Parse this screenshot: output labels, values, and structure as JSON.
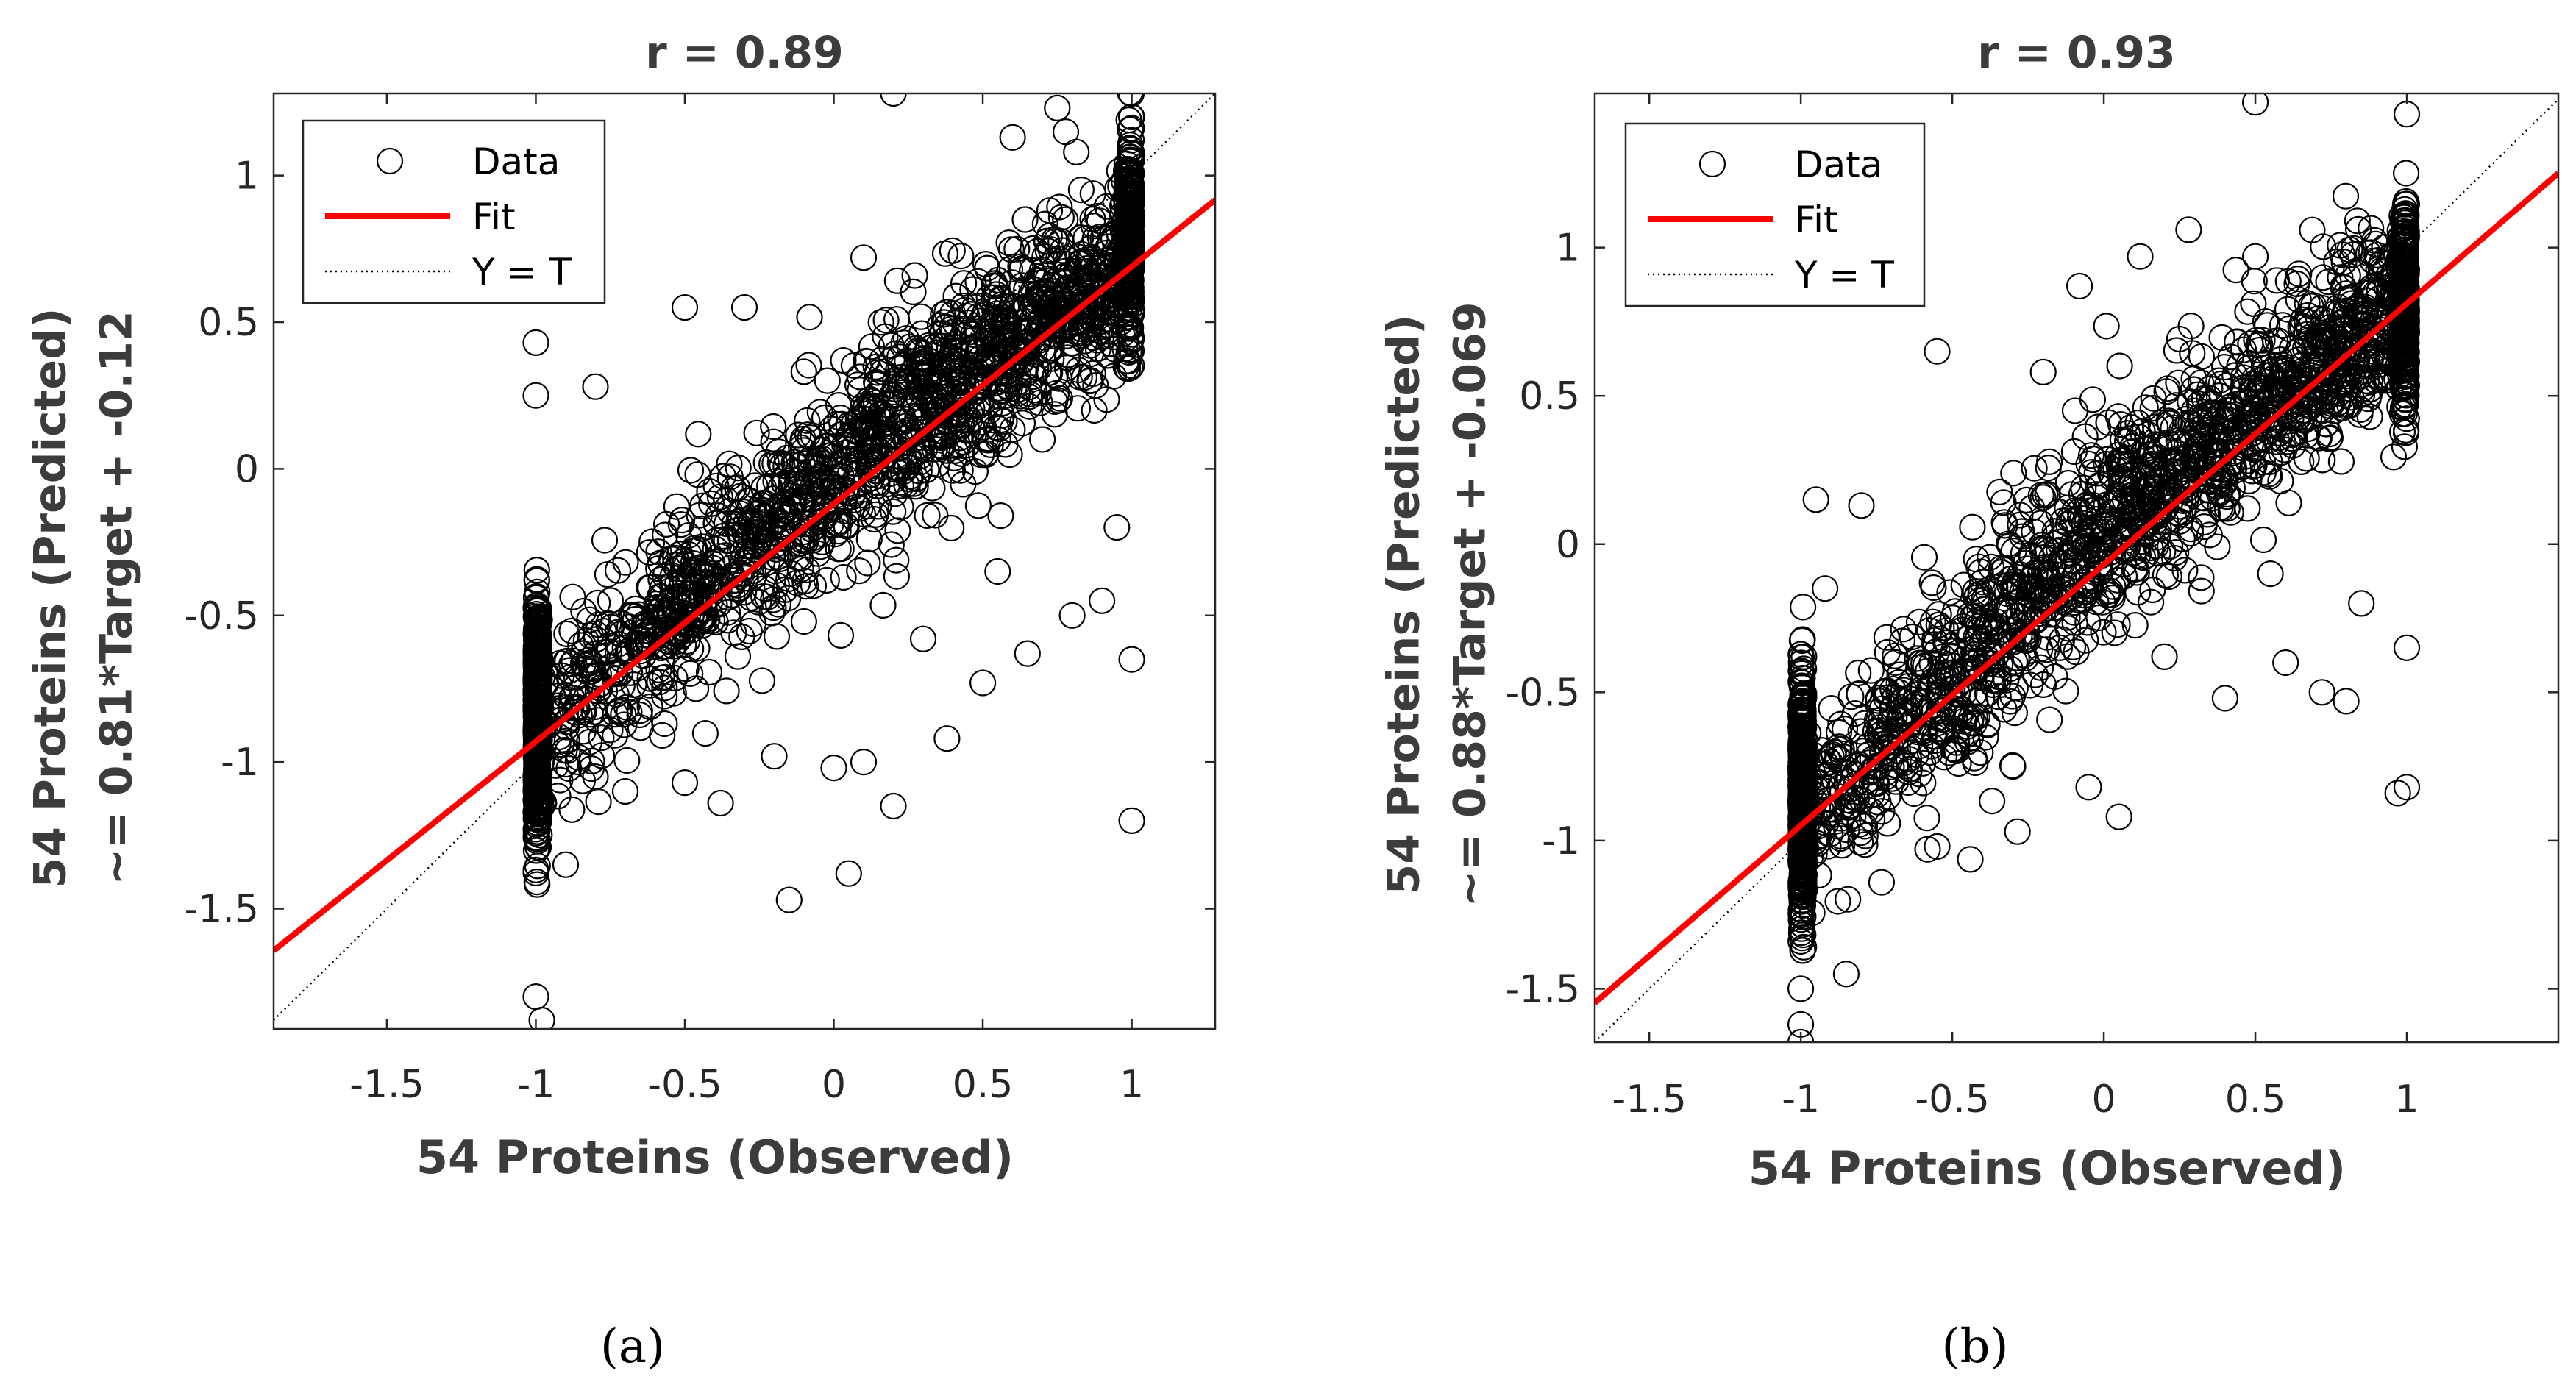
{
  "colors": {
    "marker": "#000000",
    "fit": "#ff0000",
    "identity": "#000000",
    "axes": "#262626",
    "label": "#3c3c3c"
  },
  "chart_data": [
    {
      "type": "scatter",
      "title": "r = 0.89",
      "xlabel": "54 Proteins (Observed)",
      "ylabel": "54 Proteins (Predicted)",
      "ylabel2": "~= 0.81*Target + -0.12",
      "caption": "(a)",
      "xlim": [
        -1.88,
        1.28
      ],
      "ylim": [
        -1.91,
        1.28
      ],
      "xticks": [
        -1.5,
        -1,
        -0.5,
        0,
        0.5,
        1
      ],
      "yticks": [
        -1.5,
        -1,
        -0.5,
        0,
        0.5,
        1
      ],
      "xtick_labels": [
        "-1.5",
        "-1",
        "-0.5",
        "0",
        "0.5",
        "1"
      ],
      "ytick_labels": [
        "-1.5",
        "-1",
        "-0.5",
        "0",
        "0.5",
        "1"
      ],
      "legend": {
        "placement": "top-left",
        "entries": [
          "Data",
          "Fit",
          "Y = T"
        ]
      },
      "fit": {
        "slope": 0.81,
        "intercept": -0.12
      },
      "scatter_seed": 7,
      "sample_points": [
        [
          0.2,
          1.28
        ],
        [
          -1.0,
          -1.8
        ],
        [
          -0.98,
          -1.88
        ],
        [
          -0.15,
          -1.47
        ],
        [
          0.05,
          -1.38
        ],
        [
          -0.2,
          -0.98
        ],
        [
          0.0,
          -1.02
        ],
        [
          -0.8,
          -1.05
        ],
        [
          -0.38,
          -1.14
        ],
        [
          -0.5,
          -1.07
        ],
        [
          0.1,
          -1.0
        ],
        [
          0.2,
          -1.15
        ],
        [
          0.38,
          -0.92
        ],
        [
          0.5,
          -0.73
        ],
        [
          0.65,
          -0.63
        ],
        [
          1.0,
          -1.2
        ],
        [
          1.0,
          -0.65
        ],
        [
          -0.5,
          0.55
        ],
        [
          -0.3,
          0.55
        ],
        [
          -1.0,
          0.43
        ],
        [
          -1.0,
          0.25
        ],
        [
          0.1,
          0.72
        ],
        [
          0.6,
          1.13
        ],
        [
          0.75,
          1.23
        ],
        [
          1.0,
          1.2
        ],
        [
          -0.8,
          0.28
        ],
        [
          0.55,
          -0.35
        ],
        [
          0.8,
          -0.5
        ],
        [
          0.9,
          -0.45
        ],
        [
          0.3,
          -0.58
        ],
        [
          -0.7,
          -1.1
        ],
        [
          -0.9,
          -1.35
        ],
        [
          0.95,
          -0.2
        ],
        [
          0.7,
          0.1
        ],
        [
          -0.45,
          -0.48
        ]
      ]
    },
    {
      "type": "scatter",
      "title": "r = 0.93",
      "xlabel": "54 Proteins (Observed)",
      "ylabel": "54 Proteins (Predicted)",
      "ylabel2": "~= 0.88*Target + -0.069",
      "caption": "(b)",
      "xlim": [
        -1.68,
        1.5
      ],
      "ylim": [
        -1.68,
        1.52
      ],
      "xticks": [
        -1.5,
        -1,
        -0.5,
        0,
        0.5,
        1
      ],
      "yticks": [
        -1.5,
        -1,
        -0.5,
        0,
        0.5,
        1
      ],
      "xtick_labels": [
        "-1.5",
        "-1",
        "-0.5",
        "0",
        "0.5",
        "1"
      ],
      "ytick_labels": [
        "-1.5",
        "-1",
        "-0.5",
        "0",
        "0.5",
        "1"
      ],
      "legend": {
        "placement": "top-left",
        "entries": [
          "Data",
          "Fit",
          "Y = T"
        ]
      },
      "fit": {
        "slope": 0.88,
        "intercept": -0.069
      },
      "scatter_seed": 19,
      "sample_points": [
        [
          0.5,
          1.49
        ],
        [
          1.0,
          1.45
        ],
        [
          -1.0,
          -1.62
        ],
        [
          -1.0,
          -1.68
        ],
        [
          -1.0,
          -1.5
        ],
        [
          -0.55,
          0.65
        ],
        [
          -0.08,
          0.87
        ],
        [
          0.12,
          0.97
        ],
        [
          0.28,
          1.06
        ],
        [
          0.5,
          0.97
        ],
        [
          -0.2,
          0.58
        ],
        [
          0.4,
          -0.52
        ],
        [
          0.6,
          -0.4
        ],
        [
          0.72,
          -0.5
        ],
        [
          0.8,
          -0.53
        ],
        [
          1.0,
          -0.82
        ],
        [
          0.97,
          -0.84
        ],
        [
          1.0,
          -0.35
        ],
        [
          0.05,
          -0.92
        ],
        [
          -0.05,
          -0.82
        ],
        [
          -0.55,
          -1.02
        ],
        [
          -0.95,
          0.15
        ],
        [
          -0.8,
          0.13
        ],
        [
          -0.85,
          -1.45
        ],
        [
          0.2,
          -0.38
        ],
        [
          -0.3,
          -0.75
        ],
        [
          0.55,
          -0.1
        ],
        [
          0.85,
          -0.2
        ],
        [
          -0.92,
          -0.15
        ],
        [
          0.3,
          0.3
        ]
      ]
    }
  ]
}
